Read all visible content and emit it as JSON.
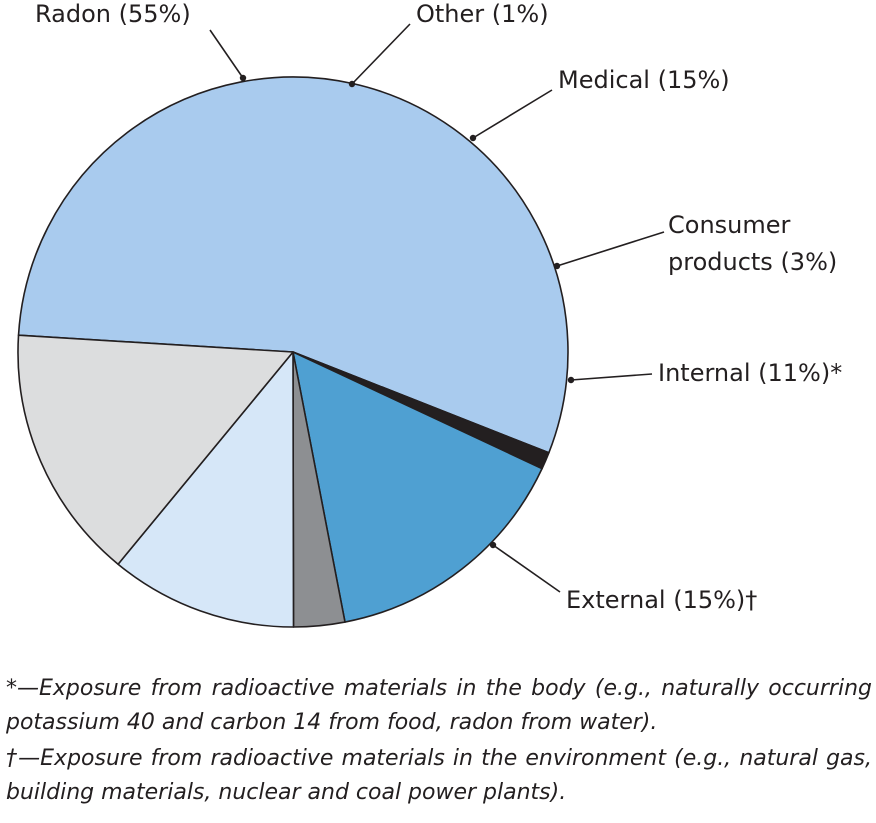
{
  "chart_data": {
    "type": "pie",
    "slices": [
      {
        "label": "Radon (55%)",
        "value": 55,
        "color": "#a9cbee"
      },
      {
        "label": "Other (1%)",
        "value": 1,
        "color": "#231f20"
      },
      {
        "label": "Medical (15%)",
        "value": 15,
        "color": "#4fa0d2"
      },
      {
        "label": "Consumer products (3%)",
        "label_lines": [
          "Consumer",
          "products (3%)"
        ],
        "value": 3,
        "color": "#8d8f92"
      },
      {
        "label": "Internal (11%)*",
        "value": 11,
        "color": "#d6e7f8"
      },
      {
        "label": "External (15%)†",
        "value": 15,
        "color": "#dcddde"
      }
    ]
  },
  "footnotes": [
    "*—Exposure from radioactive materials in the body (e.g., naturally occurring potassium 40 and carbon 14 from food, radon from water).",
    "†—Exposure from radioactive materials in the environment (e.g., natural gas, building materials, nuclear and coal power plants)."
  ]
}
